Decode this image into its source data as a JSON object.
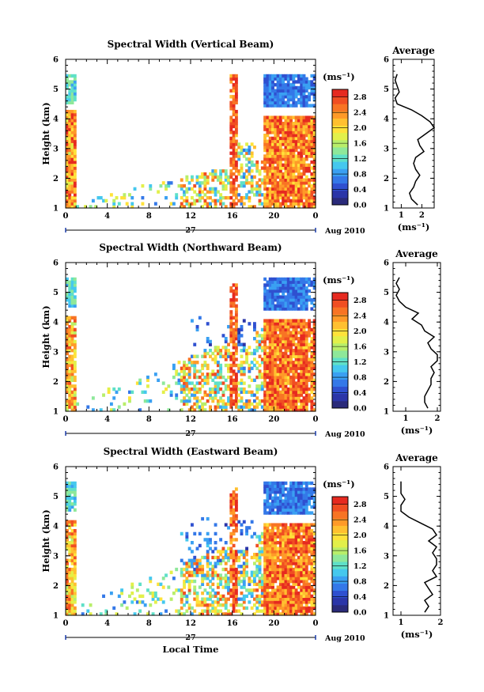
{
  "figure": {
    "date_label": "Aug 2010",
    "day_label": "27",
    "xlabel": "Local Time",
    "ylabel": "Height (km)",
    "x_ticks": [
      "0",
      "4",
      "8",
      "12",
      "16",
      "20",
      "0"
    ],
    "y_ticks": [
      "1",
      "2",
      "3",
      "4",
      "5",
      "6"
    ],
    "colorbar": {
      "unit": "(ms⁻¹)",
      "ticks": [
        "0.0",
        "0.4",
        "0.8",
        "1.2",
        "1.6",
        "2.0",
        "2.4",
        "2.8"
      ],
      "colors": [
        "#2a2a7a",
        "#2b35a8",
        "#2f50d0",
        "#3478e8",
        "#3aa0f2",
        "#45c8ee",
        "#5fe0c8",
        "#8ee89a",
        "#b8ee6a",
        "#e2f04a",
        "#ffe23a",
        "#ffc030",
        "#ff9a28",
        "#f87424",
        "#f04e22",
        "#e62a20"
      ]
    },
    "average_title": "Average",
    "average_unit": "(ms⁻¹)"
  },
  "chart_data": [
    {
      "type": "heatmap",
      "title": "Spectral Width (Vertical Beam)",
      "xlabel": "Local Time",
      "ylabel": "Height (km)",
      "xlim": [
        0,
        24
      ],
      "ylim": [
        1,
        6
      ],
      "colorbar_label": "(ms⁻¹)",
      "colorbar_range": [
        0.0,
        3.0
      ],
      "average_profile": {
        "title": "Average",
        "xlabel": "(ms⁻¹)",
        "x_ticks": [
          "1",
          "2"
        ],
        "xlim": [
          0.6,
          2.6
        ],
        "heights": [
          1.1,
          1.3,
          1.5,
          1.7,
          1.9,
          2.1,
          2.3,
          2.5,
          2.7,
          2.9,
          3.1,
          3.3,
          3.5,
          3.7,
          3.9,
          4.1,
          4.3,
          4.5,
          4.7,
          4.9,
          5.1,
          5.3,
          5.5
        ],
        "values": [
          1.8,
          1.5,
          1.4,
          1.6,
          1.7,
          1.9,
          1.7,
          1.6,
          1.7,
          2.1,
          1.9,
          1.8,
          2.2,
          2.6,
          2.4,
          2.0,
          1.5,
          0.8,
          0.7,
          0.9,
          0.8,
          0.7,
          0.8
        ]
      }
    },
    {
      "type": "heatmap",
      "title": "Spectral Width (Northward Beam)",
      "xlabel": "Local Time",
      "ylabel": "Height (km)",
      "xlim": [
        0,
        24
      ],
      "ylim": [
        1,
        6
      ],
      "colorbar_label": "(ms⁻¹)",
      "colorbar_range": [
        0.0,
        3.0
      ],
      "average_profile": {
        "title": "Average",
        "xlabel": "(ms⁻¹)",
        "x_ticks": [
          "1",
          "2"
        ],
        "xlim": [
          0.6,
          2.1
        ],
        "heights": [
          1.1,
          1.3,
          1.5,
          1.7,
          1.9,
          2.1,
          2.3,
          2.5,
          2.7,
          2.9,
          3.1,
          3.3,
          3.5,
          3.7,
          3.9,
          4.1,
          4.3,
          4.5,
          4.7,
          4.9,
          5.1,
          5.3,
          5.5
        ],
        "values": [
          1.7,
          1.6,
          1.6,
          1.7,
          1.8,
          1.8,
          1.9,
          1.8,
          2.0,
          2.0,
          1.8,
          1.7,
          1.9,
          1.6,
          1.5,
          1.2,
          1.4,
          1.0,
          0.8,
          0.7,
          0.8,
          0.7,
          0.8
        ]
      }
    },
    {
      "type": "heatmap",
      "title": "Spectral Width (Eastward Beam)",
      "xlabel": "Local Time",
      "ylabel": "Height (km)",
      "xlim": [
        0,
        24
      ],
      "ylim": [
        1,
        6
      ],
      "colorbar_label": "(ms⁻¹)",
      "colorbar_range": [
        0.0,
        3.0
      ],
      "average_profile": {
        "title": "Average",
        "xlabel": "(ms⁻¹)",
        "x_ticks": [
          "1",
          "2"
        ],
        "xlim": [
          0.8,
          2.0
        ],
        "heights": [
          1.1,
          1.3,
          1.5,
          1.7,
          1.9,
          2.1,
          2.3,
          2.5,
          2.7,
          2.9,
          3.1,
          3.3,
          3.5,
          3.7,
          3.9,
          4.1,
          4.3,
          4.5,
          4.7,
          4.9,
          5.1,
          5.3,
          5.5
        ],
        "values": [
          1.6,
          1.7,
          1.6,
          1.8,
          1.7,
          1.6,
          1.9,
          1.8,
          1.9,
          1.9,
          1.8,
          1.9,
          1.7,
          1.9,
          1.8,
          1.5,
          1.2,
          1.0,
          1.0,
          1.1,
          1.0,
          1.0,
          1.0
        ]
      }
    }
  ]
}
